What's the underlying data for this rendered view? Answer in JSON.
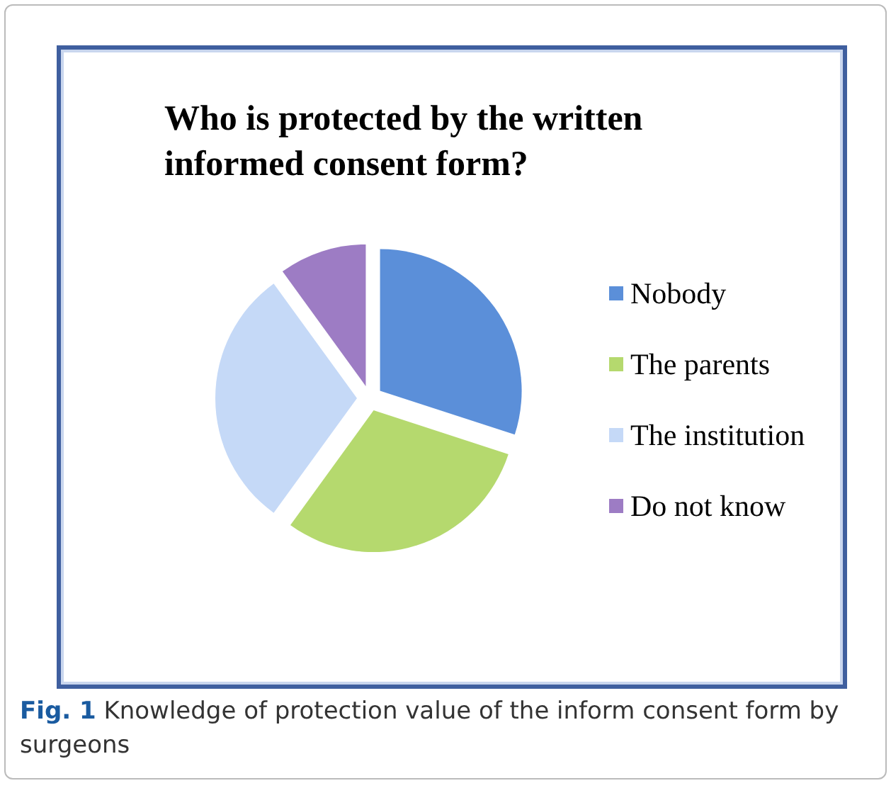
{
  "chart_data": {
    "type": "pie",
    "title": "Who is protected by the written informed consent form?",
    "categories": [
      "Nobody",
      "The parents",
      "The institution",
      "Do not know"
    ],
    "values": [
      30,
      30,
      30,
      10
    ],
    "colors": [
      "#5b8fd9",
      "#b5d96e",
      "#c5d9f7",
      "#9d7cc4"
    ],
    "legend": "right",
    "annotations": [
      "Fig. 1",
      "Knowledge of protection value of the inform consent form by surgeons"
    ]
  }
}
